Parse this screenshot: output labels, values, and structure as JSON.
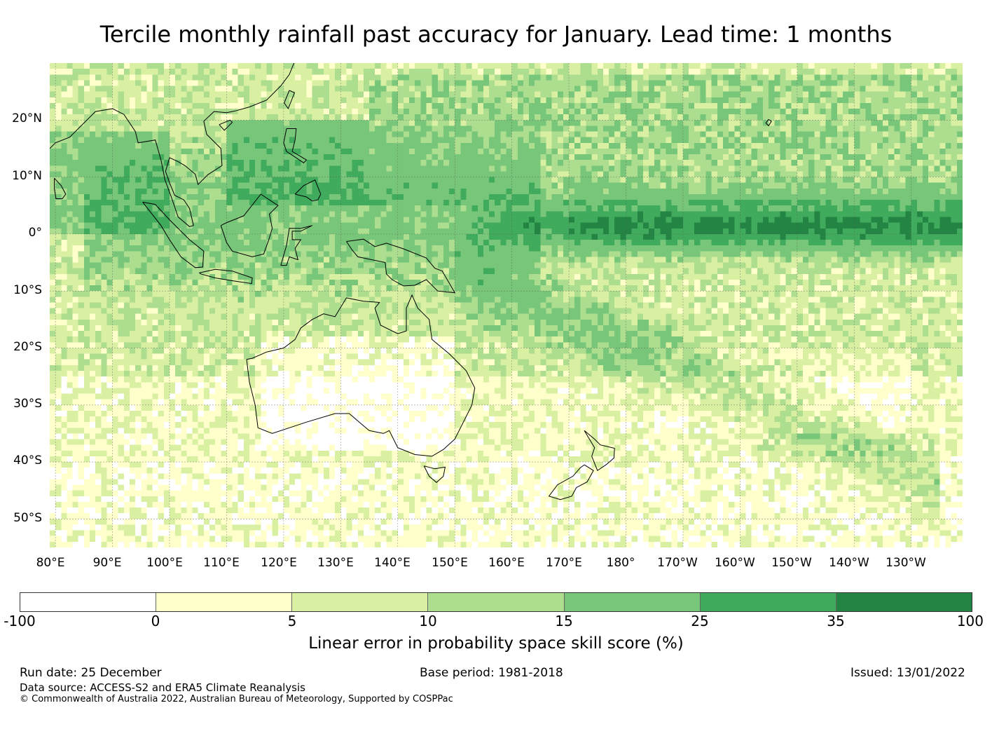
{
  "title": "Tercile monthly rainfall past accuracy for January. Lead time: 1 months",
  "map": {
    "lat_labels": [
      "20°N",
      "10°N",
      "0°",
      "10°S",
      "20°S",
      "30°S",
      "40°S",
      "50°S"
    ],
    "lon_labels": [
      "80°E",
      "90°E",
      "100°E",
      "110°E",
      "120°E",
      "130°E",
      "140°E",
      "150°E",
      "160°E",
      "170°E",
      "180°",
      "170°W",
      "160°W",
      "150°W",
      "140°W",
      "130°W"
    ],
    "lat_values": [
      20,
      10,
      0,
      -10,
      -20,
      -30,
      -40,
      -50
    ],
    "lon_values": [
      80,
      90,
      100,
      110,
      120,
      130,
      140,
      150,
      160,
      170,
      180,
      190,
      200,
      210,
      220,
      230
    ],
    "extent": {
      "lon_min": 79,
      "lon_max": 239,
      "lat_min": -55,
      "lat_max": 30
    }
  },
  "colorbar": {
    "ticks": [
      "-100",
      "0",
      "5",
      "10",
      "15",
      "25",
      "35",
      "100"
    ],
    "colors": [
      "#ffffff",
      "#ffffcc",
      "#d9f0a3",
      "#addd8e",
      "#78c679",
      "#41ab5d",
      "#238443"
    ],
    "label": "Linear error in probability space skill score (%)"
  },
  "footer": {
    "run_date": "Run date: 25 December",
    "base_period": "Base period: 1981-2018",
    "issued": "Issued: 13/01/2022",
    "data_source": "Data source: ACCESS-S2 and ERA5 Climate Reanalysis",
    "copyright": "© Commonwealth of Australia 2022, Australian Bureau of Meteorology, Supported by COSPPac"
  }
}
